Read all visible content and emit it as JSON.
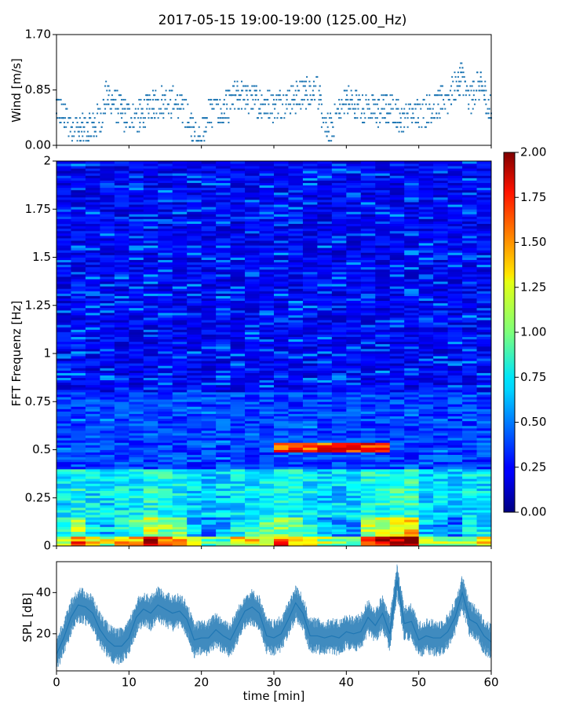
{
  "figure": {
    "title": "2017-05-15 19:00-19:00 (125.00_Hz)"
  },
  "chart_data": [
    {
      "type": "scatter",
      "panel": "wind",
      "ylabel": "Wind [m/s]",
      "ylim": [
        0,
        1.7
      ],
      "yticks": [
        0.0,
        0.85,
        1.7
      ],
      "ytick_labels": [
        "0.00",
        "0.85",
        "1.70"
      ],
      "xlim": [
        0,
        60
      ],
      "x_tick_values": [
        0,
        10,
        20,
        30,
        40,
        50,
        60
      ],
      "marker_color": "#1f77b4",
      "points": []
    },
    {
      "type": "heatmap",
      "panel": "spectrogram",
      "ylabel": "FFT Frequenz [Hz]",
      "ylim": [
        0,
        2
      ],
      "yticks": [
        0,
        0.25,
        0.5,
        0.75,
        1,
        1.25,
        1.5,
        1.75,
        2
      ],
      "ytick_labels": [
        "0",
        "0.25",
        "0.5",
        "0.75",
        "1",
        "1.25",
        "1.5",
        "1.75",
        "2"
      ],
      "xlim": [
        0,
        60
      ],
      "colormap": "jet",
      "color_range": [
        0,
        2
      ],
      "colorbar_ticks": [
        "0.00",
        "0.25",
        "0.50",
        "0.75",
        "1.00",
        "1.25",
        "1.50",
        "1.75",
        "2.00"
      ],
      "x_segments": [
        0,
        2,
        4,
        6,
        8,
        10,
        12,
        14,
        16,
        18,
        20,
        22,
        24,
        26,
        28,
        30,
        32,
        34,
        36,
        38,
        40,
        42,
        44,
        46,
        48,
        50,
        52,
        54,
        56,
        58,
        60
      ],
      "low_freq_level": [
        1.0,
        1.3,
        0.9,
        0.8,
        1.0,
        1.1,
        1.4,
        1.3,
        1.2,
        0.8,
        0.6,
        0.7,
        0.9,
        1.0,
        1.1,
        1.3,
        1.2,
        1.0,
        0.7,
        0.7,
        0.7,
        1.4,
        1.5,
        1.6,
        1.7,
        0.8,
        0.7,
        0.6,
        0.9,
        0.9
      ]
    },
    {
      "type": "line",
      "panel": "spl",
      "ylabel": "SPL [dB]",
      "xlabel": "time [min]",
      "ylim": [
        2,
        55
      ],
      "yticks": [
        20,
        40
      ],
      "ytick_labels": [
        "20",
        "40"
      ],
      "xlim": [
        0,
        60
      ],
      "xticks": [
        0,
        10,
        20,
        30,
        40,
        50,
        60
      ],
      "xtick_labels": [
        "0",
        "10",
        "20",
        "30",
        "40",
        "50",
        "60"
      ],
      "line_color": "#1f77b4",
      "x": [
        0,
        1,
        2,
        3,
        4,
        5,
        6,
        7,
        8,
        9,
        10,
        11,
        12,
        13,
        14,
        15,
        16,
        17,
        18,
        19,
        20,
        21,
        22,
        23,
        24,
        25,
        26,
        27,
        28,
        29,
        30,
        31,
        32,
        33,
        34,
        35,
        36,
        37,
        38,
        39,
        40,
        41,
        42,
        43,
        44,
        45,
        46,
        47,
        48,
        49,
        50,
        51,
        52,
        53,
        54,
        55,
        56,
        57,
        58,
        59,
        60
      ],
      "y": [
        10,
        18,
        28,
        34,
        33,
        30,
        22,
        17,
        14,
        14,
        18,
        28,
        32,
        30,
        34,
        32,
        30,
        31,
        27,
        17,
        18,
        18,
        22,
        19,
        17,
        24,
        31,
        33,
        30,
        19,
        18,
        20,
        27,
        35,
        30,
        19,
        19,
        18,
        19,
        18,
        21,
        20,
        21,
        28,
        24,
        30,
        20,
        46,
        25,
        26,
        17,
        19,
        18,
        18,
        21,
        28,
        40,
        27,
        25,
        19,
        16
      ]
    }
  ]
}
